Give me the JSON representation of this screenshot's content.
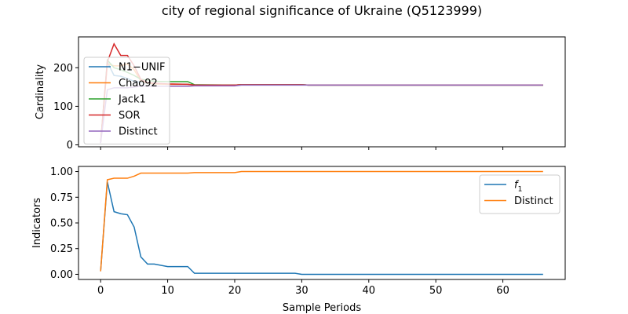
{
  "figure": {
    "title": "city of regional significance of Ukraine (Q5123999)"
  },
  "chart_data": [
    {
      "type": "line",
      "ylabel": "Cardinality",
      "xlabel": "",
      "xlim": [
        -3.3,
        69.3
      ],
      "ylim": [
        -5,
        280
      ],
      "xticks": [
        0,
        10,
        20,
        30,
        40,
        50,
        60
      ],
      "yticks": [
        0,
        100,
        200
      ],
      "show_xtick_labels": false,
      "legend_position": "upper-left",
      "grid": false,
      "series": [
        {
          "name": "N1−UNIF",
          "color": "#1f77b4",
          "points": [
            [
              0,
              5
            ],
            [
              1,
              215
            ],
            [
              2,
              180
            ],
            [
              3,
              178
            ],
            [
              4,
              172
            ],
            [
              5,
              165
            ],
            [
              6,
              162
            ],
            [
              7,
              160
            ],
            [
              8,
              158
            ],
            [
              10,
              157
            ],
            [
              13,
              157
            ],
            [
              14,
              155
            ],
            [
              20,
              155
            ],
            [
              21,
              156
            ],
            [
              30,
              156
            ],
            [
              31,
              155
            ],
            [
              66,
              155
            ]
          ]
        },
        {
          "name": "Chao92",
          "color": "#ff7f0e",
          "points": [
            [
              0,
              5
            ],
            [
              1,
              210
            ],
            [
              2,
              205
            ],
            [
              3,
              205
            ],
            [
              4,
              210
            ],
            [
              5,
              195
            ],
            [
              6,
              165
            ],
            [
              7,
              160
            ],
            [
              8,
              158
            ],
            [
              10,
              157
            ],
            [
              13,
              157
            ],
            [
              14,
              155
            ],
            [
              20,
              155
            ],
            [
              21,
              156
            ],
            [
              30,
              156
            ],
            [
              31,
              155
            ],
            [
              66,
              155
            ]
          ]
        },
        {
          "name": "Jack1",
          "color": "#2ca02c",
          "points": [
            [
              0,
              5
            ],
            [
              1,
              220
            ],
            [
              2,
              200
            ],
            [
              3,
              195
            ],
            [
              4,
              188
            ],
            [
              5,
              180
            ],
            [
              6,
              170
            ],
            [
              7,
              168
            ],
            [
              8,
              165
            ],
            [
              10,
              164
            ],
            [
              13,
              164
            ],
            [
              14,
              156
            ],
            [
              20,
              155
            ],
            [
              21,
              156
            ],
            [
              30,
              156
            ],
            [
              31,
              155
            ],
            [
              66,
              155
            ]
          ]
        },
        {
          "name": "SOR",
          "color": "#d62728",
          "points": [
            [
              0,
              5
            ],
            [
              1,
              215
            ],
            [
              2,
              262
            ],
            [
              3,
              232
            ],
            [
              4,
              232
            ],
            [
              5,
              205
            ],
            [
              6,
              170
            ],
            [
              7,
              162
            ],
            [
              8,
              160
            ],
            [
              10,
              158
            ],
            [
              13,
              157
            ],
            [
              14,
              155
            ],
            [
              20,
              155
            ],
            [
              21,
              156
            ],
            [
              30,
              156
            ],
            [
              31,
              155
            ],
            [
              66,
              155
            ]
          ]
        },
        {
          "name": "Distinct",
          "color": "#9467bd",
          "points": [
            [
              0,
              5
            ],
            [
              1,
              143
            ],
            [
              2,
              148
            ],
            [
              3,
              148
            ],
            [
              4,
              148
            ],
            [
              5,
              150
            ],
            [
              6,
              152
            ],
            [
              7,
              152
            ],
            [
              8,
              152
            ],
            [
              10,
              152
            ],
            [
              13,
              152
            ],
            [
              14,
              153
            ],
            [
              20,
              153
            ],
            [
              21,
              155
            ],
            [
              30,
              155
            ],
            [
              31,
              155
            ],
            [
              66,
              155
            ]
          ]
        }
      ]
    },
    {
      "type": "line",
      "ylabel": "Indicators",
      "xlabel": "Sample Periods",
      "xlim": [
        -3.3,
        69.3
      ],
      "ylim": [
        -0.05,
        1.05
      ],
      "xticks": [
        0,
        10,
        20,
        30,
        40,
        50,
        60
      ],
      "xtick_labels": [
        "0",
        "10",
        "20",
        "30",
        "40",
        "50",
        "60"
      ],
      "yticks": [
        0.0,
        0.25,
        0.5,
        0.75,
        1.0
      ],
      "ytick_labels": [
        "0.00",
        "0.25",
        "0.50",
        "0.75",
        "1.00"
      ],
      "show_xtick_labels": true,
      "legend_position": "upper-right",
      "grid": false,
      "series": [
        {
          "name": "f",
          "name_subscript": "1",
          "color": "#1f77b4",
          "points": [
            [
              0,
              0.03
            ],
            [
              1,
              0.9
            ],
            [
              2,
              0.61
            ],
            [
              3,
              0.59
            ],
            [
              4,
              0.58
            ],
            [
              5,
              0.46
            ],
            [
              6,
              0.17
            ],
            [
              7,
              0.1
            ],
            [
              8,
              0.1
            ],
            [
              10,
              0.075
            ],
            [
              11,
              0.075
            ],
            [
              12,
              0.075
            ],
            [
              13,
              0.075
            ],
            [
              14,
              0.01
            ],
            [
              20,
              0.01
            ],
            [
              21,
              0.01
            ],
            [
              29,
              0.01
            ],
            [
              30,
              0.0
            ],
            [
              66,
              0.0
            ]
          ]
        },
        {
          "name": "Distinct",
          "color": "#ff7f0e",
          "points": [
            [
              0,
              0.03
            ],
            [
              1,
              0.92
            ],
            [
              2,
              0.935
            ],
            [
              3,
              0.935
            ],
            [
              4,
              0.935
            ],
            [
              5,
              0.955
            ],
            [
              6,
              0.985
            ],
            [
              7,
              0.985
            ],
            [
              8,
              0.985
            ],
            [
              10,
              0.985
            ],
            [
              13,
              0.985
            ],
            [
              14,
              0.99
            ],
            [
              20,
              0.99
            ],
            [
              21,
              1.0
            ],
            [
              66,
              1.0
            ]
          ]
        }
      ]
    }
  ]
}
